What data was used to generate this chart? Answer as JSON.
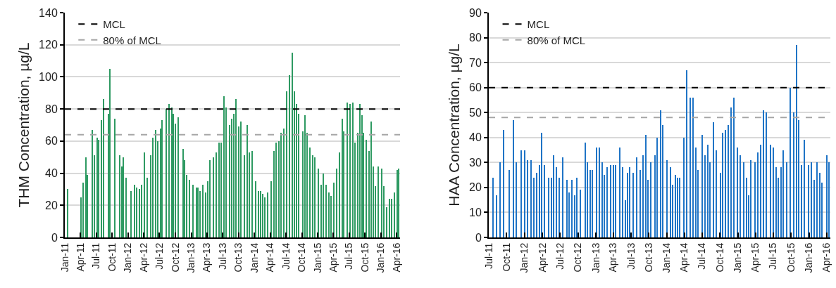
{
  "chart_data": [
    {
      "type": "bar",
      "ylabel": "THM Concentration, µg/L",
      "color": "#2e9a62",
      "grid": "y",
      "legend": "top left",
      "x": [
        "2011-01-19",
        "2011-04-05",
        "2011-04-19",
        "2011-05-04",
        "2011-05-12",
        "2011-06-08",
        "2011-06-22",
        "2011-07-07",
        "2011-07-16",
        "2011-07-30",
        "2011-08-15",
        "2011-09-09",
        "2011-09-18",
        "2011-10-18",
        "2011-11-13",
        "2011-11-27",
        "2011-12-05",
        "2011-12-21",
        "2012-01-18",
        "2012-02-08",
        "2012-02-22",
        "2012-03-07",
        "2012-03-21",
        "2012-04-06",
        "2012-04-20",
        "2012-05-10",
        "2012-05-25",
        "2012-06-09",
        "2012-06-22",
        "2012-07-08",
        "2012-07-17",
        "2012-08-11",
        "2012-08-25",
        "2012-09-09",
        "2012-09-19",
        "2012-10-03",
        "2012-10-19",
        "2012-11-13",
        "2012-11-22",
        "2012-12-06",
        "2012-12-22",
        "2013-01-10",
        "2013-01-29",
        "2013-02-07",
        "2013-02-22",
        "2013-03-08",
        "2013-03-23",
        "2013-04-07",
        "2013-04-20",
        "2013-05-10",
        "2013-05-24",
        "2013-06-10",
        "2013-06-23",
        "2013-07-09",
        "2013-07-19",
        "2013-08-12",
        "2013-08-22",
        "2013-09-05",
        "2013-09-14",
        "2013-10-01",
        "2013-10-14",
        "2013-11-04",
        "2013-11-18",
        "2013-12-03",
        "2013-12-17",
        "2014-01-07",
        "2014-01-23",
        "2014-02-06",
        "2014-02-19",
        "2014-03-03",
        "2014-03-17",
        "2014-04-07",
        "2014-04-22",
        "2014-05-06",
        "2014-05-20",
        "2014-06-04",
        "2014-06-21",
        "2014-07-06",
        "2014-07-22",
        "2014-08-06",
        "2014-08-20",
        "2014-08-30",
        "2014-09-14",
        "2014-10-08",
        "2014-10-21",
        "2014-11-02",
        "2014-11-17",
        "2014-12-02",
        "2014-12-16",
        "2015-01-06",
        "2015-01-20",
        "2015-02-04",
        "2015-02-19",
        "2015-03-05",
        "2015-03-18",
        "2015-04-06",
        "2015-04-21",
        "2015-05-05",
        "2015-05-21",
        "2015-06-01",
        "2015-06-22",
        "2015-07-07",
        "2015-07-21",
        "2015-08-05",
        "2015-08-20",
        "2015-09-01",
        "2015-09-15",
        "2015-09-23",
        "2015-10-09",
        "2015-10-24",
        "2015-11-04",
        "2015-11-19",
        "2015-12-02",
        "2015-12-18",
        "2016-01-05",
        "2016-01-19",
        "2016-02-05",
        "2016-02-18",
        "2016-03-04",
        "2016-03-18",
        "2016-04-04",
        "2016-04-12"
      ],
      "values": [
        30,
        25,
        34,
        50,
        39,
        67,
        51,
        62,
        61,
        73,
        86,
        77,
        105,
        74,
        51,
        44,
        50,
        37,
        29,
        33,
        31,
        30,
        33,
        53,
        37,
        51,
        62,
        67,
        60,
        68,
        73,
        80,
        83,
        81,
        77,
        71,
        75,
        55,
        48,
        39,
        36,
        33,
        31,
        31,
        29,
        33,
        28,
        35,
        48,
        50,
        53,
        59,
        59,
        88,
        81,
        70,
        74,
        77,
        86,
        69,
        72,
        51,
        70,
        53,
        54,
        35,
        29,
        29,
        27,
        25,
        28,
        35,
        54,
        59,
        60,
        65,
        68,
        91,
        101,
        115,
        91,
        83,
        77,
        66,
        76,
        65,
        56,
        51,
        50,
        43,
        33,
        40,
        33,
        28,
        26,
        34,
        43,
        53,
        74,
        66,
        84,
        83,
        84,
        59,
        65,
        83,
        76,
        65,
        61,
        54,
        72,
        44,
        32,
        44,
        43,
        32,
        19,
        24,
        24,
        28,
        42,
        43
      ],
      "xlim": [
        "2011-01-01",
        "2016-04-20"
      ],
      "xticks": [
        {
          "value": "2011-01-01",
          "label": "Jan-11"
        },
        {
          "value": "2011-04-01",
          "label": "Apr-11"
        },
        {
          "value": "2011-07-01",
          "label": "Jul-11"
        },
        {
          "value": "2011-10-01",
          "label": "Oct-11"
        },
        {
          "value": "2012-01-01",
          "label": "Jan-12"
        },
        {
          "value": "2012-04-01",
          "label": "Apr-12"
        },
        {
          "value": "2012-07-01",
          "label": "Jul-12"
        },
        {
          "value": "2012-10-01",
          "label": "Oct-12"
        },
        {
          "value": "2013-01-01",
          "label": "Jan-13"
        },
        {
          "value": "2013-04-01",
          "label": "Apr-13"
        },
        {
          "value": "2013-07-01",
          "label": "Jul-13"
        },
        {
          "value": "2013-10-01",
          "label": "Oct-13"
        },
        {
          "value": "2014-01-01",
          "label": "Jan-14"
        },
        {
          "value": "2014-04-01",
          "label": "Apr-14"
        },
        {
          "value": "2014-07-01",
          "label": "Jul-14"
        },
        {
          "value": "2014-10-01",
          "label": "Oct-14"
        },
        {
          "value": "2015-01-01",
          "label": "Jan-15"
        },
        {
          "value": "2015-04-01",
          "label": "Apr-15"
        },
        {
          "value": "2015-07-01",
          "label": "Jul-15"
        },
        {
          "value": "2015-10-01",
          "label": "Oct-15"
        },
        {
          "value": "2016-01-01",
          "label": "Jan-16"
        },
        {
          "value": "2016-04-01",
          "label": "Apr-16"
        }
      ],
      "ylim": [
        0,
        140
      ],
      "yticks": [
        0,
        20,
        40,
        60,
        80,
        100,
        120,
        140
      ],
      "ref_lines": [
        {
          "axis": "y",
          "value": 80,
          "label": "MCL",
          "color": "#000000",
          "line_style": "dashed"
        },
        {
          "axis": "y",
          "value": 64,
          "label": "80% of MCL",
          "color": "#a6a6a6",
          "line_style": "dashed"
        }
      ]
    },
    {
      "type": "bar",
      "ylabel": "HAA Concentration, µg/L",
      "color": "#1f74c6",
      "grid": "y",
      "legend": "top left",
      "x": [
        "2011-07-25",
        "2011-08-09",
        "2011-08-30",
        "2011-09-14",
        "2011-10-14",
        "2011-11-05",
        "2011-11-19",
        "2011-12-16",
        "2012-01-02",
        "2012-01-16",
        "2012-02-03",
        "2012-02-20",
        "2012-03-04",
        "2012-03-17",
        "2012-03-29",
        "2012-04-13",
        "2012-05-04",
        "2012-05-17",
        "2012-05-30",
        "2012-06-13",
        "2012-06-29",
        "2012-07-14",
        "2012-08-05",
        "2012-08-18",
        "2012-09-02",
        "2012-09-15",
        "2012-09-27",
        "2012-10-15",
        "2012-11-07",
        "2012-11-20",
        "2012-12-03",
        "2012-12-16",
        "2013-01-07",
        "2013-01-20",
        "2013-02-03",
        "2013-02-15",
        "2013-02-28",
        "2013-03-17",
        "2013-04-01",
        "2013-04-13",
        "2013-05-04",
        "2013-05-18",
        "2013-06-01",
        "2013-06-14",
        "2013-06-26",
        "2013-07-12",
        "2013-07-30",
        "2013-08-17",
        "2013-09-01",
        "2013-09-14",
        "2013-09-27",
        "2013-10-10",
        "2013-11-01",
        "2013-11-12",
        "2013-12-01",
        "2013-12-13",
        "2014-01-01",
        "2014-01-19",
        "2014-01-30",
        "2014-02-14",
        "2014-02-27",
        "2014-03-10",
        "2014-03-30",
        "2014-04-15",
        "2014-05-02",
        "2014-05-15",
        "2014-05-29",
        "2014-06-11",
        "2014-07-02",
        "2014-07-16",
        "2014-08-01",
        "2014-08-10",
        "2014-08-29",
        "2014-09-13",
        "2014-10-03",
        "2014-10-16",
        "2014-10-30",
        "2014-11-12",
        "2014-11-26",
        "2014-12-11",
        "2014-12-29",
        "2015-01-14",
        "2015-01-30",
        "2015-02-14",
        "2015-02-26",
        "2015-03-10",
        "2015-04-01",
        "2015-04-14",
        "2015-04-27",
        "2015-05-13",
        "2015-05-27",
        "2015-06-18",
        "2015-07-03",
        "2015-07-16",
        "2015-07-29",
        "2015-08-12",
        "2015-08-24",
        "2015-09-11",
        "2015-09-29",
        "2015-10-15",
        "2015-10-29",
        "2015-11-11",
        "2015-11-26",
        "2015-12-09",
        "2015-12-29",
        "2016-01-13",
        "2016-01-27",
        "2016-02-13",
        "2016-02-26",
        "2016-03-10",
        "2016-04-01",
        "2016-04-15"
      ],
      "values": [
        24,
        17,
        30,
        43,
        27,
        47,
        30,
        35,
        35,
        31,
        31,
        24,
        26,
        29,
        42,
        29,
        24,
        24,
        33,
        28,
        24,
        32,
        23,
        18,
        23,
        17,
        24,
        19,
        38,
        30,
        27,
        27,
        36,
        36,
        30,
        25,
        28,
        29,
        29,
        29,
        36,
        28,
        15,
        26,
        28,
        26,
        32,
        27,
        33,
        41,
        23,
        30,
        33,
        40,
        51,
        45,
        31,
        28,
        21,
        25,
        24,
        24,
        40,
        67,
        56,
        56,
        36,
        27,
        41,
        33,
        37,
        30,
        46,
        35,
        26,
        42,
        43,
        45,
        52,
        56,
        36,
        33,
        30,
        24,
        17,
        31,
        30,
        34,
        37,
        51,
        50,
        37,
        36,
        28,
        24,
        28,
        35,
        30,
        60,
        50,
        77,
        47,
        29,
        39,
        29,
        30,
        23,
        30,
        26,
        22,
        33,
        30
      ],
      "xlim": [
        "2011-07-01",
        "2016-04-20"
      ],
      "xticks": [
        {
          "value": "2011-07-01",
          "label": "Jul-11"
        },
        {
          "value": "2011-10-01",
          "label": "Oct-11"
        },
        {
          "value": "2012-01-01",
          "label": "Jan-12"
        },
        {
          "value": "2012-04-01",
          "label": "Apr-12"
        },
        {
          "value": "2012-07-01",
          "label": "Jul-12"
        },
        {
          "value": "2012-10-01",
          "label": "Oct-12"
        },
        {
          "value": "2013-01-01",
          "label": "Jan-13"
        },
        {
          "value": "2013-04-01",
          "label": "Apr-13"
        },
        {
          "value": "2013-07-01",
          "label": "Jul-13"
        },
        {
          "value": "2013-10-01",
          "label": "Oct-13"
        },
        {
          "value": "2014-01-01",
          "label": "Jan-14"
        },
        {
          "value": "2014-04-01",
          "label": "Apr-14"
        },
        {
          "value": "2014-07-01",
          "label": "Jul-14"
        },
        {
          "value": "2014-10-01",
          "label": "Oct-14"
        },
        {
          "value": "2015-01-01",
          "label": "Jan-15"
        },
        {
          "value": "2015-04-01",
          "label": "Apr-15"
        },
        {
          "value": "2015-07-01",
          "label": "Jul-15"
        },
        {
          "value": "2015-10-01",
          "label": "Oct-15"
        },
        {
          "value": "2016-01-01",
          "label": "Jan-16"
        },
        {
          "value": "2016-04-01",
          "label": "Apr-16"
        }
      ],
      "ylim": [
        0,
        90
      ],
      "yticks": [
        0,
        10,
        20,
        30,
        40,
        50,
        60,
        70,
        80,
        90
      ],
      "ref_lines": [
        {
          "axis": "y",
          "value": 60,
          "label": "MCL",
          "color": "#000000",
          "line_style": "dashed"
        },
        {
          "axis": "y",
          "value": 48,
          "label": "80% of MCL",
          "color": "#a6a6a6",
          "line_style": "dashed"
        }
      ]
    }
  ]
}
